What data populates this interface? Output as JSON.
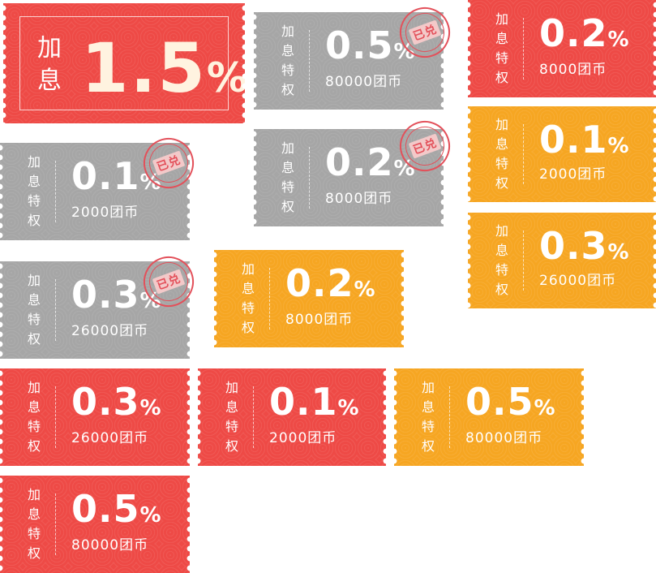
{
  "colors": {
    "red": "#ee4a46",
    "gray": "#a6a6a6",
    "orange": "#f6a622",
    "stamp": "#e3505a"
  },
  "big_ticket": {
    "label_top": "加",
    "label_bottom": "息",
    "rate": "1.5",
    "unit": "%"
  },
  "label_chars": [
    "加",
    "息",
    "特",
    "权"
  ],
  "stamp_text": "已兑",
  "tickets": [
    {
      "color": "gray",
      "rate": "0.5",
      "unit": "%",
      "coins": "80000团币",
      "redeemed": true
    },
    {
      "color": "red",
      "rate": "0.2",
      "unit": "%",
      "coins": "8000团币",
      "redeemed": false
    },
    {
      "color": "gray",
      "rate": "0.1",
      "unit": "%",
      "coins": "2000团币",
      "redeemed": true
    },
    {
      "color": "gray",
      "rate": "0.2",
      "unit": "%",
      "coins": "8000团币",
      "redeemed": true
    },
    {
      "color": "orange",
      "rate": "0.1",
      "unit": "%",
      "coins": "2000团币",
      "redeemed": false
    },
    {
      "color": "orange",
      "rate": "0.3",
      "unit": "%",
      "coins": "26000团币",
      "redeemed": false
    },
    {
      "color": "gray",
      "rate": "0.3",
      "unit": "%",
      "coins": "26000团币",
      "redeemed": true
    },
    {
      "color": "orange",
      "rate": "0.2",
      "unit": "%",
      "coins": "8000团币",
      "redeemed": false
    },
    {
      "color": "red",
      "rate": "0.3",
      "unit": "%",
      "coins": "26000团币",
      "redeemed": false
    },
    {
      "color": "red",
      "rate": "0.1",
      "unit": "%",
      "coins": "2000团币",
      "redeemed": false
    },
    {
      "color": "orange",
      "rate": "0.5",
      "unit": "%",
      "coins": "80000团币",
      "redeemed": false
    },
    {
      "color": "red",
      "rate": "0.5",
      "unit": "%",
      "coins": "80000团币",
      "redeemed": false
    }
  ]
}
